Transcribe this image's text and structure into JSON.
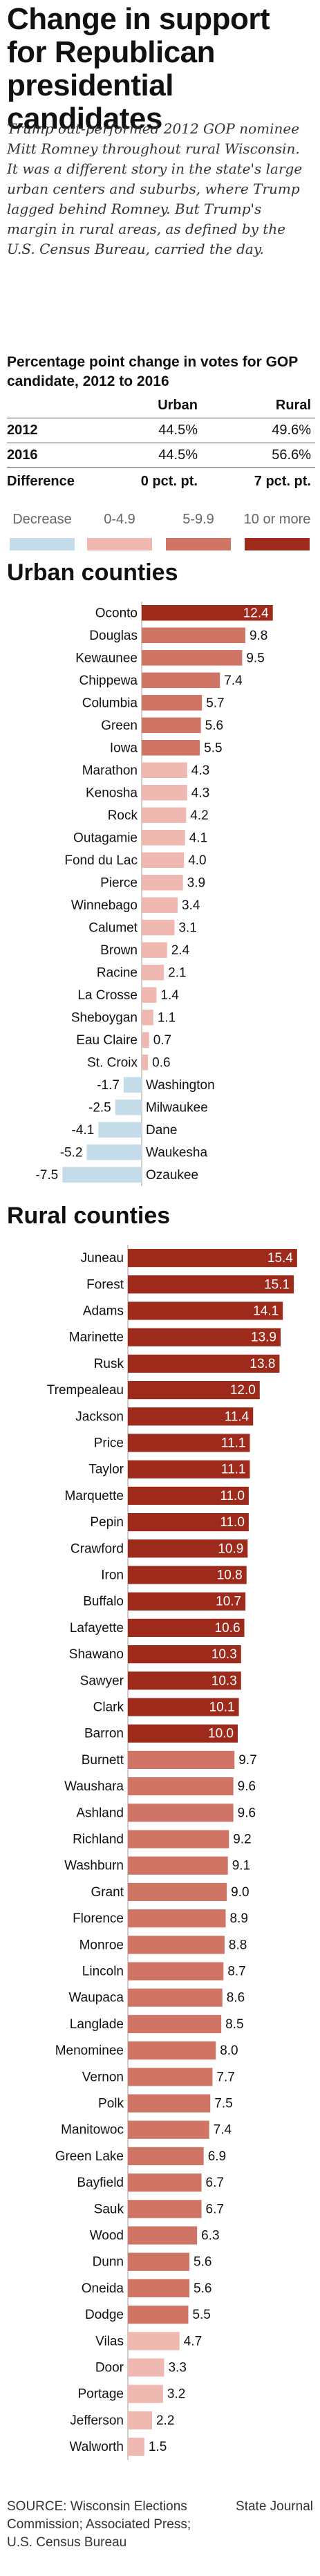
{
  "headline": "Change in support for Republican presidential candidates",
  "intro": "Trump out-performed 2012 GOP nominee Mitt Romney throughout rural Wisconsin. It was a different story in the state's large urban centers and suburbs, where Trump lagged behind Romney. But Trump's margin in rural areas, as defined by the U.S. Census Bureau, carried the day.",
  "table": {
    "title": "Percentage point change in votes for GOP candidate, 2012 to 2016",
    "col_urban": "Urban",
    "col_rural": "Rural",
    "rows": [
      {
        "label": "2012",
        "urban": "44.5%",
        "rural": "49.6%"
      },
      {
        "label": "2016",
        "urban": "44.5%",
        "rural": "56.6%"
      }
    ],
    "diff": {
      "label": "Difference",
      "urban": "0 pct. pt.",
      "rural": "7 pct. pt."
    }
  },
  "legend": [
    {
      "label": "Decrease",
      "color": "#c5dceb"
    },
    {
      "label": "0-4.9",
      "color": "#efb8b1"
    },
    {
      "label": "5-9.9",
      "color": "#d07466"
    },
    {
      "label": "10 or more",
      "color": "#9e2a1c"
    }
  ],
  "source": "SOURCE: Wisconsin Elections Commission; Associated Press; U.S. Census Bureau",
  "credit": "State Journal",
  "chart_data": [
    {
      "type": "bar",
      "orientation": "horizontal",
      "title": "Urban counties",
      "categories": [
        "Oconto",
        "Douglas",
        "Kewaunee",
        "Chippewa",
        "Columbia",
        "Green",
        "Iowa",
        "Marathon",
        "Kenosha",
        "Rock",
        "Outagamie",
        "Fond du Lac",
        "Pierce",
        "Winnebago",
        "Calumet",
        "Brown",
        "Racine",
        "La Crosse",
        "Sheboygan",
        "Eau Claire",
        "St. Croix",
        "Washington",
        "Milwaukee",
        "Dane",
        "Waukesha",
        "Ozaukee"
      ],
      "values": [
        12.4,
        9.8,
        9.5,
        7.4,
        5.7,
        5.6,
        5.5,
        4.3,
        4.3,
        4.2,
        4.1,
        4.0,
        3.9,
        3.4,
        3.1,
        2.4,
        2.1,
        1.4,
        1.1,
        0.7,
        0.6,
        -1.7,
        -2.5,
        -4.1,
        -5.2,
        -7.5
      ],
      "value_labels": [
        "12.4",
        "9.8",
        "9.5",
        "7.4",
        "5.7",
        "5.6",
        "5.5",
        "4.3",
        "4.3",
        "4.2",
        "4.1",
        "4.0",
        "3.9",
        "3.4",
        "3.1",
        "2.4",
        "2.1",
        "1.4",
        "1.1",
        "0.7",
        "0.6",
        "-1.7",
        "-2.5",
        "-4.1",
        "-5.2",
        "-7.5"
      ],
      "xlim": [
        -8,
        16
      ]
    },
    {
      "type": "bar",
      "orientation": "horizontal",
      "title": "Rural counties",
      "categories": [
        "Juneau",
        "Forest",
        "Adams",
        "Marinette",
        "Rusk",
        "Trempealeau",
        "Jackson",
        "Price",
        "Taylor",
        "Marquette",
        "Pepin",
        "Crawford",
        "Iron",
        "Buffalo",
        "Lafayette",
        "Shawano",
        "Sawyer",
        "Clark",
        "Barron",
        "Burnett",
        "Waushara",
        "Ashland",
        "Richland",
        "Washburn",
        "Grant",
        "Florence",
        "Monroe",
        "Lincoln",
        "Waupaca",
        "Langlade",
        "Menominee",
        "Vernon",
        "Polk",
        "Manitowoc",
        "Green Lake",
        "Bayfield",
        "Sauk",
        "Wood",
        "Dunn",
        "Oneida",
        "Dodge",
        "Vilas",
        "Door",
        "Portage",
        "Jefferson",
        "Walworth"
      ],
      "values": [
        15.4,
        15.1,
        14.1,
        13.9,
        13.8,
        12.0,
        11.4,
        11.1,
        11.1,
        11.0,
        11.0,
        10.9,
        10.8,
        10.7,
        10.6,
        10.3,
        10.3,
        10.1,
        10.0,
        9.7,
        9.6,
        9.6,
        9.2,
        9.1,
        9.0,
        8.9,
        8.8,
        8.7,
        8.6,
        8.5,
        8.0,
        7.7,
        7.5,
        7.4,
        6.9,
        6.7,
        6.7,
        6.3,
        5.6,
        5.6,
        5.5,
        4.7,
        3.3,
        3.2,
        2.2,
        1.5
      ],
      "value_labels": [
        "15.4",
        "15.1",
        "14.1",
        "13.9",
        "13.8",
        "12.0",
        "11.4",
        "11.1",
        "11.1",
        "11.0",
        "11.0",
        "10.9",
        "10.8",
        "10.7",
        "10.6",
        "10.3",
        "10.3",
        "10.1",
        "10.0",
        "9.7",
        "9.6",
        "9.6",
        "9.2",
        "9.1",
        "9.0",
        "8.9",
        "8.8",
        "8.7",
        "8.6",
        "8.5",
        "8.0",
        "7.7",
        "7.5",
        "7.4",
        "6.9",
        "6.7",
        "6.7",
        "6.3",
        "5.6",
        "5.6",
        "5.5",
        "4.7",
        "3.3",
        "3.2",
        "2.2",
        "1.5"
      ],
      "xlim": [
        0,
        16
      ]
    }
  ]
}
